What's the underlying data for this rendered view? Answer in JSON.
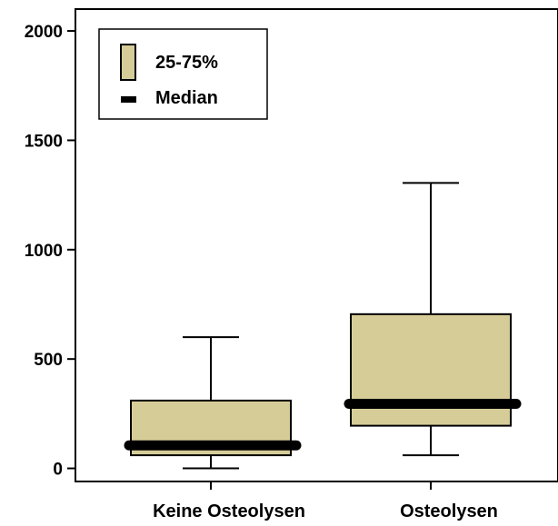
{
  "chart_data": {
    "type": "boxplot",
    "title": "",
    "xlabel": "",
    "ylabel": "",
    "ylim": [
      -60,
      2100
    ],
    "y_ticks": [
      0,
      500,
      1000,
      1500,
      2000
    ],
    "categories": [
      "Keine Osteolysen",
      "Osteolysen"
    ],
    "boxes": [
      {
        "category": "Keine Osteolysen",
        "whisker_low": 0,
        "q1": 60,
        "median": 105,
        "q3": 310,
        "whisker_high": 600
      },
      {
        "category": "Osteolysen",
        "whisker_low": 60,
        "q1": 195,
        "median": 295,
        "q3": 705,
        "whisker_high": 1305
      }
    ],
    "legend": {
      "position": "top-left",
      "entries": [
        {
          "label": "25-75%",
          "kind": "box"
        },
        {
          "label": "Median",
          "kind": "line"
        }
      ]
    },
    "colors": {
      "box_fill": "#d5cc98",
      "stroke": "#000000",
      "background": "#ffffff"
    },
    "grid": false
  }
}
